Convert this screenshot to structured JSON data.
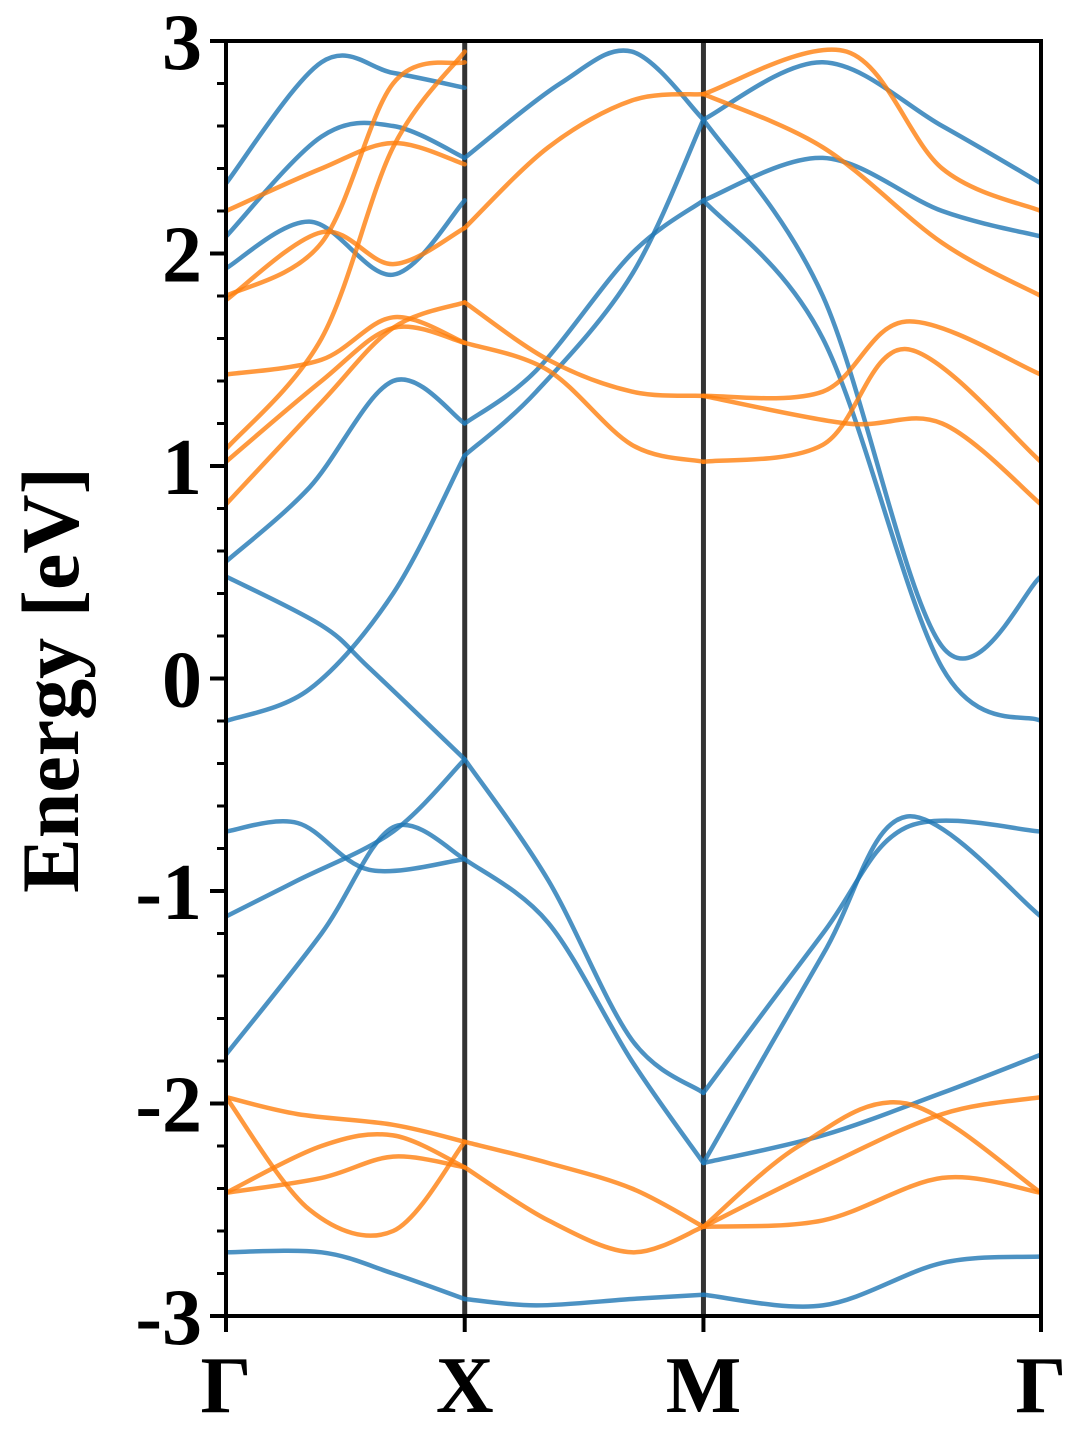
{
  "chart_data": {
    "type": "line",
    "ylabel": "Energy [eV]",
    "ylim": [
      -3,
      3
    ],
    "yticks": [
      "-3",
      "-2",
      "-1",
      "0",
      "1",
      "2",
      "3"
    ],
    "kpath": [
      {
        "label": "Γ",
        "x": 0.0
      },
      {
        "label": "X",
        "x": 1.0
      },
      {
        "label": "M",
        "x": 2.0
      },
      {
        "label": "Γ",
        "x": 3.414
      }
    ],
    "colors": {
      "series_a": "#1f77b4",
      "series_b": "#ff7f0e",
      "divider": "#333333"
    },
    "series": [
      {
        "color": "#1f77b4",
        "x": [
          0,
          0.4,
          0.6,
          1.0
        ],
        "y": [
          0.48,
          0.25,
          0.05,
          -0.38
        ]
      },
      {
        "color": "#1f77b4",
        "x": [
          1.0,
          1.35,
          1.7,
          2.0
        ],
        "y": [
          -0.38,
          -0.95,
          -1.7,
          -1.95
        ]
      },
      {
        "color": "#1f77b4",
        "x": [
          0,
          0.3,
          0.6,
          1.0
        ],
        "y": [
          -0.72,
          -0.68,
          -0.9,
          -0.85
        ]
      },
      {
        "color": "#1f77b4",
        "x": [
          1.0,
          1.35,
          1.7,
          2.0
        ],
        "y": [
          -0.85,
          -1.15,
          -1.8,
          -2.28
        ]
      },
      {
        "color": "#1f77b4",
        "x": [
          0,
          0.3,
          0.7,
          1.0
        ],
        "y": [
          -1.12,
          -0.95,
          -0.72,
          -0.38
        ]
      },
      {
        "color": "#1f77b4",
        "x": [
          0,
          0.4,
          0.7,
          1.0
        ],
        "y": [
          -1.77,
          -1.2,
          -0.7,
          -0.85
        ]
      },
      {
        "color": "#1f77b4",
        "x": [
          0,
          0.35,
          0.7,
          1.0
        ],
        "y": [
          -0.2,
          -0.05,
          0.4,
          1.05
        ]
      },
      {
        "color": "#1f77b4",
        "x": [
          0,
          0.35,
          0.7,
          1.0
        ],
        "y": [
          0.55,
          0.9,
          1.4,
          1.2
        ]
      },
      {
        "color": "#1f77b4",
        "x": [
          1.0,
          1.3,
          1.7,
          2.0
        ],
        "y": [
          1.05,
          1.35,
          1.9,
          2.63
        ]
      },
      {
        "color": "#1f77b4",
        "x": [
          1.0,
          1.3,
          1.7,
          2.0
        ],
        "y": [
          1.2,
          1.45,
          2.0,
          2.25
        ]
      },
      {
        "color": "#1f77b4",
        "x": [
          2.0,
          2.5,
          3.0,
          3.414
        ],
        "y": [
          2.63,
          1.8,
          0.15,
          0.48
        ]
      },
      {
        "color": "#1f77b4",
        "x": [
          2.0,
          2.5,
          3.0,
          3.414
        ],
        "y": [
          2.25,
          1.6,
          0.05,
          -0.2
        ]
      },
      {
        "color": "#1f77b4",
        "x": [
          2.0,
          2.5,
          2.85,
          3.414
        ],
        "y": [
          -1.95,
          -1.2,
          -0.7,
          -0.72
        ]
      },
      {
        "color": "#1f77b4",
        "x": [
          2.0,
          2.5,
          2.85,
          3.414
        ],
        "y": [
          -2.28,
          -1.3,
          -0.65,
          -1.12
        ]
      },
      {
        "color": "#1f77b4",
        "x": [
          2.0,
          2.5,
          3.0,
          3.414
        ],
        "y": [
          -2.28,
          -2.15,
          -1.95,
          -1.77
        ]
      },
      {
        "color": "#1f77b4",
        "x": [
          0,
          0.4,
          0.7,
          1.0
        ],
        "y": [
          -2.7,
          -2.7,
          -2.8,
          -2.92
        ]
      },
      {
        "color": "#1f77b4",
        "x": [
          1.0,
          1.3,
          1.7,
          2.0
        ],
        "y": [
          -2.92,
          -2.95,
          -2.92,
          -2.9
        ]
      },
      {
        "color": "#1f77b4",
        "x": [
          2.0,
          2.5,
          3.0,
          3.414
        ],
        "y": [
          -2.9,
          -2.95,
          -2.75,
          -2.72
        ]
      },
      {
        "color": "#1f77b4",
        "x": [
          0,
          0.4,
          0.7,
          1.0
        ],
        "y": [
          2.08,
          2.55,
          2.6,
          2.45
        ]
      },
      {
        "color": "#1f77b4",
        "x": [
          0,
          0.4,
          0.7,
          1.0
        ],
        "y": [
          2.33,
          2.9,
          2.85,
          2.78
        ]
      },
      {
        "color": "#1f77b4",
        "x": [
          1.0,
          1.4,
          1.7,
          2.0
        ],
        "y": [
          2.45,
          2.8,
          2.95,
          2.63
        ]
      },
      {
        "color": "#1f77b4",
        "x": [
          2.0,
          2.5,
          3.0,
          3.414
        ],
        "y": [
          2.63,
          2.9,
          2.6,
          2.33
        ]
      },
      {
        "color": "#1f77b4",
        "x": [
          2.0,
          2.5,
          3.0,
          3.414
        ],
        "y": [
          2.25,
          2.45,
          2.2,
          2.08
        ]
      },
      {
        "color": "#1f77b4",
        "x": [
          0,
          0.35,
          0.7,
          1.0
        ],
        "y": [
          1.93,
          2.15,
          1.9,
          2.25
        ]
      },
      {
        "color": "#ff7f0e",
        "x": [
          0,
          0.3,
          0.7,
          1.0
        ],
        "y": [
          -1.97,
          -2.05,
          -2.1,
          -2.18
        ]
      },
      {
        "color": "#ff7f0e",
        "x": [
          1.0,
          1.35,
          1.7,
          2.0
        ],
        "y": [
          -2.18,
          -2.28,
          -2.4,
          -2.58
        ]
      },
      {
        "color": "#ff7f0e",
        "x": [
          0,
          0.4,
          0.7,
          1.0
        ],
        "y": [
          -2.42,
          -2.2,
          -2.15,
          -2.3
        ]
      },
      {
        "color": "#ff7f0e",
        "x": [
          1.0,
          1.35,
          1.7,
          2.0
        ],
        "y": [
          -2.3,
          -2.55,
          -2.7,
          -2.58
        ]
      },
      {
        "color": "#ff7f0e",
        "x": [
          0,
          0.35,
          0.7,
          1.0
        ],
        "y": [
          -1.97,
          -2.5,
          -2.6,
          -2.18
        ]
      },
      {
        "color": "#ff7f0e",
        "x": [
          0,
          0.4,
          0.7,
          1.0
        ],
        "y": [
          -2.42,
          -2.35,
          -2.25,
          -2.3
        ]
      },
      {
        "color": "#ff7f0e",
        "x": [
          2.0,
          2.5,
          3.0,
          3.414
        ],
        "y": [
          -2.58,
          -2.3,
          -2.05,
          -1.97
        ]
      },
      {
        "color": "#ff7f0e",
        "x": [
          2.0,
          2.5,
          3.0,
          3.414
        ],
        "y": [
          -2.58,
          -2.55,
          -2.35,
          -2.42
        ]
      },
      {
        "color": "#ff7f0e",
        "x": [
          2.0,
          2.4,
          2.85,
          3.414
        ],
        "y": [
          -2.58,
          -2.2,
          -2.0,
          -2.42
        ]
      },
      {
        "color": "#ff7f0e",
        "x": [
          0,
          0.4,
          0.7,
          1.0
        ],
        "y": [
          0.82,
          1.3,
          1.65,
          1.77
        ]
      },
      {
        "color": "#ff7f0e",
        "x": [
          0,
          0.4,
          0.7,
          1.0
        ],
        "y": [
          1.02,
          1.4,
          1.65,
          1.58
        ]
      },
      {
        "color": "#ff7f0e",
        "x": [
          0,
          0.4,
          0.7,
          1.0
        ],
        "y": [
          1.43,
          1.5,
          1.7,
          1.58
        ]
      },
      {
        "color": "#ff7f0e",
        "x": [
          1.0,
          1.35,
          1.7,
          2.0
        ],
        "y": [
          1.77,
          1.5,
          1.35,
          1.33
        ]
      },
      {
        "color": "#ff7f0e",
        "x": [
          1.0,
          1.35,
          1.7,
          2.0
        ],
        "y": [
          1.58,
          1.45,
          1.1,
          1.02
        ]
      },
      {
        "color": "#ff7f0e",
        "x": [
          2.0,
          2.5,
          2.85,
          3.414
        ],
        "y": [
          1.33,
          1.35,
          1.68,
          1.43
        ]
      },
      {
        "color": "#ff7f0e",
        "x": [
          2.0,
          2.5,
          2.85,
          3.414
        ],
        "y": [
          1.02,
          1.1,
          1.55,
          1.02
        ]
      },
      {
        "color": "#ff7f0e",
        "x": [
          2.0,
          2.6,
          3.0,
          3.414
        ],
        "y": [
          1.33,
          1.2,
          1.2,
          0.82
        ]
      },
      {
        "color": "#ff7f0e",
        "x": [
          0,
          0.4,
          0.7,
          1.0
        ],
        "y": [
          1.78,
          2.1,
          1.95,
          2.12
        ]
      },
      {
        "color": "#ff7f0e",
        "x": [
          0,
          0.4,
          0.7,
          1.0
        ],
        "y": [
          2.2,
          2.4,
          2.52,
          2.42
        ]
      },
      {
        "color": "#ff7f0e",
        "x": [
          1.0,
          1.35,
          1.7,
          2.0
        ],
        "y": [
          2.12,
          2.5,
          2.72,
          2.75
        ]
      },
      {
        "color": "#ff7f0e",
        "x": [
          2.0,
          2.5,
          3.0,
          3.414
        ],
        "y": [
          2.75,
          2.5,
          2.05,
          1.8
        ]
      },
      {
        "color": "#ff7f0e",
        "x": [
          2.0,
          2.6,
          3.0,
          3.414
        ],
        "y": [
          2.75,
          2.95,
          2.4,
          2.2
        ]
      },
      {
        "color": "#ff7f0e",
        "x": [
          0,
          0.4,
          0.7,
          1.0
        ],
        "y": [
          1.08,
          1.6,
          2.5,
          2.95
        ]
      },
      {
        "color": "#ff7f0e",
        "x": [
          0,
          0.4,
          0.7,
          1.0
        ],
        "y": [
          1.8,
          2.05,
          2.8,
          2.9
        ]
      }
    ]
  }
}
